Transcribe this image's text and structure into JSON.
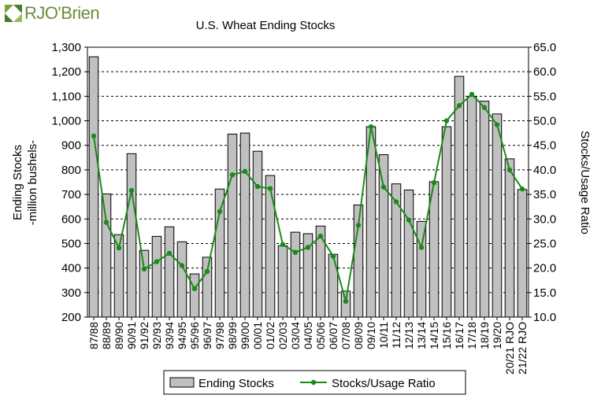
{
  "logo": {
    "text": "RJO'Brien"
  },
  "chart_data": {
    "type": "bar+line",
    "title": "U.S. Wheat Ending Stocks",
    "ylabel_line1": "Ending Stocks",
    "ylabel_line2": "-million bushels-",
    "y2label": "Stocks/Usage Ratio",
    "ylim": [
      200,
      1300
    ],
    "y2lim": [
      10.0,
      65.0
    ],
    "yticks": [
      "200",
      "300",
      "400",
      "500",
      "600",
      "700",
      "800",
      "900",
      "1,000",
      "1,100",
      "1,200",
      "1,300"
    ],
    "y2ticks": [
      "10.0",
      "15.0",
      "20.0",
      "25.0",
      "30.0",
      "35.0",
      "40.0",
      "45.0",
      "50.0",
      "55.0",
      "60.0",
      "65.0"
    ],
    "categories": [
      "87/88",
      "88/89",
      "89/90",
      "90/91",
      "91/92",
      "92/93",
      "93/94",
      "94/95",
      "95/96",
      "96/97",
      "97/98",
      "98/99",
      "99/00",
      "00/01",
      "01/02",
      "02/03",
      "03/04",
      "04/05",
      "05/06",
      "06/07",
      "07/08",
      "08/09",
      "09/10",
      "10/11",
      "11/12",
      "12/13",
      "13/14",
      "14/15",
      "15/16",
      "16/17",
      "17/18",
      "18/19",
      "19/20",
      "20/21 RJO",
      "21/22 RJO"
    ],
    "series": [
      {
        "name": "Ending Stocks",
        "type": "bar",
        "axis": "left",
        "color": "#c0c0c0",
        "values": [
          1261,
          702,
          536,
          866,
          472,
          529,
          568,
          507,
          376,
          444,
          722,
          946,
          950,
          876,
          777,
          491,
          546,
          540,
          571,
          456,
          306,
          657,
          976,
          862,
          743,
          718,
          590,
          752,
          976,
          1181,
          1100,
          1080,
          1028,
          845,
          720
        ]
      },
      {
        "name": "Stocks/Usage Ratio",
        "type": "line",
        "axis": "right",
        "color": "#1a8a1a",
        "values": [
          46.9,
          29.3,
          24.1,
          35.8,
          19.8,
          21.3,
          23.0,
          20.5,
          15.8,
          19.3,
          31.5,
          39.0,
          39.7,
          36.6,
          36.2,
          24.8,
          23.2,
          24.2,
          26.5,
          22.4,
          13.2,
          28.7,
          48.8,
          36.5,
          33.5,
          29.8,
          24.2,
          37.4,
          50.0,
          53.1,
          55.4,
          52.7,
          49.2,
          40.0,
          36.1
        ]
      }
    ],
    "legend": {
      "position": "bottom",
      "bar_label": "Ending Stocks",
      "line_label": "Stocks/Usage Ratio"
    }
  }
}
